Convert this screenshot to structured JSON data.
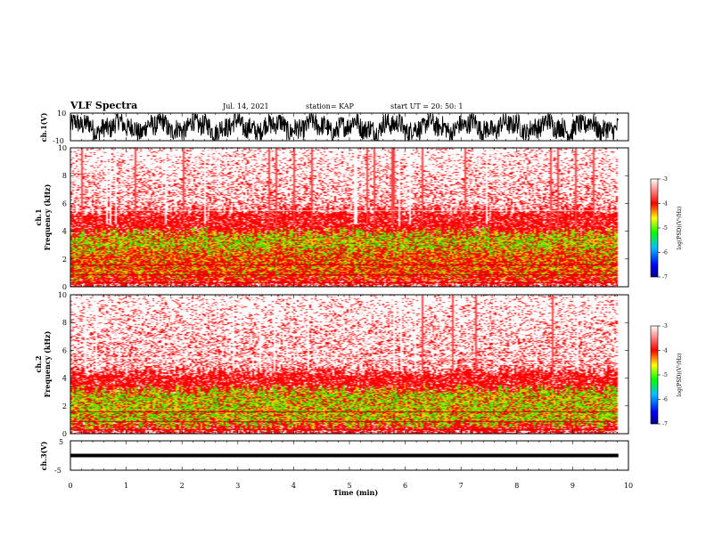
{
  "header": {
    "title": "VLF Spectra",
    "date": "Jul. 14, 2021",
    "station": "station= KAP",
    "start": "start UT = 20: 50: 1"
  },
  "colors": {
    "spec_high": "#ff0000",
    "spec_mid": "#ffcc00",
    "spec_low": "#33ee00",
    "colorbar_stops": [
      "#000080",
      "#0000ff",
      "#00c0ff",
      "#00ff00",
      "#ffff00",
      "#ff0000",
      "#ffffff"
    ]
  },
  "chart_data": [
    {
      "type": "line",
      "panel": "ch1-waveform",
      "ylabel": "ch.1(V)",
      "ylim": [
        -10,
        10
      ],
      "yticklabels": [
        "10",
        "-10"
      ],
      "xlim": [
        0,
        10
      ],
      "series": [
        {
          "x_range": [
            0,
            9.82
          ],
          "amplitude_range": [
            -9,
            9
          ],
          "appearance": "dense noisy waveform"
        }
      ]
    },
    {
      "type": "heatmap",
      "panel": "ch1-spectrogram",
      "ylabel_line1": "ch.1",
      "ylabel_line2": "Frequency (kHz)",
      "ylim": [
        0,
        10
      ],
      "yticks": [
        0,
        2,
        4,
        6,
        8,
        10
      ],
      "xlim": [
        0,
        10
      ],
      "x_data_end": 9.82,
      "colorbar": {
        "label": "log(PSD)(V²/Hz)",
        "ticks": [
          -7,
          -6,
          -5,
          -4,
          -3
        ]
      },
      "bands": [
        {
          "f_range": [
            0,
            0.6
          ],
          "level": "high"
        },
        {
          "f_range": [
            0.6,
            2.6
          ],
          "level": "high-mid"
        },
        {
          "f_range": [
            2.6,
            3.9
          ],
          "level": "mid-low"
        },
        {
          "f_range": [
            3.9,
            5.5
          ],
          "level": "high"
        },
        {
          "f_range": [
            5.5,
            10
          ],
          "level": "sparse"
        }
      ]
    },
    {
      "type": "heatmap",
      "panel": "ch2-spectrogram",
      "ylabel_line1": "ch.2",
      "ylabel_line2": "Frequency (kHz)",
      "ylim": [
        0,
        10
      ],
      "yticks": [
        0,
        2,
        4,
        6,
        8,
        10
      ],
      "xlim": [
        0,
        10
      ],
      "x_data_end": 9.82,
      "colorbar": {
        "label": "log(PSD)(V²/Hz)",
        "ticks": [
          -7,
          -6,
          -5,
          -4,
          -3
        ]
      },
      "bands": [
        {
          "f_range": [
            0,
            0.6
          ],
          "level": "high"
        },
        {
          "f_range": [
            0.6,
            3.2
          ],
          "level": "mid-low"
        },
        {
          "f_range": [
            3.2,
            4.5
          ],
          "level": "high"
        },
        {
          "f_range": [
            4.5,
            10
          ],
          "level": "sparse"
        }
      ]
    },
    {
      "type": "line",
      "panel": "ch3-waveform",
      "ylabel": "ch.3(V)",
      "ylim": [
        -5,
        5
      ],
      "yticklabels": [
        "5",
        "0",
        "-5"
      ],
      "xlim": [
        0,
        10
      ],
      "xticks": [
        0,
        1,
        2,
        3,
        4,
        5,
        6,
        7,
        8,
        9,
        10
      ],
      "xlabel": "Time (min)",
      "series": [
        {
          "x_range": [
            0,
            9.82
          ],
          "amplitude_range": [
            -0.6,
            0.6
          ],
          "appearance": "thick flat band"
        }
      ]
    }
  ]
}
